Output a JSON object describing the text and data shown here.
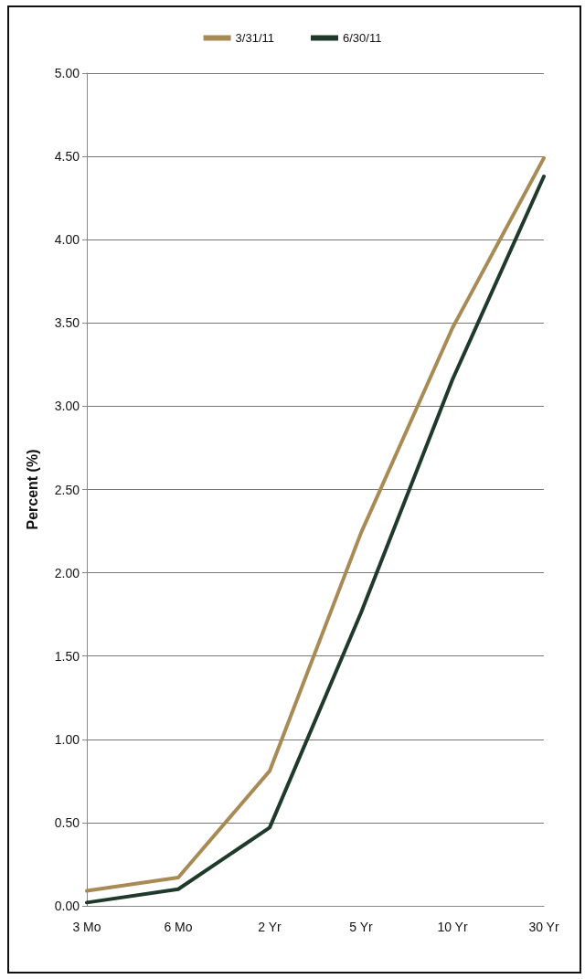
{
  "chart_data": {
    "type": "line",
    "ylabel": "Percent (%)",
    "categories": [
      "3 Mo",
      "6 Mo",
      "2 Yr",
      "5 Yr",
      "10 Yr",
      "30 Yr"
    ],
    "series": [
      {
        "name": "3/31/11",
        "color": "#a88a55",
        "values": [
          0.09,
          0.17,
          0.81,
          2.24,
          3.47,
          4.49
        ]
      },
      {
        "name": "6/30/11",
        "color": "#1f3a2a",
        "values": [
          0.02,
          0.1,
          0.47,
          1.76,
          3.16,
          4.38
        ]
      }
    ],
    "ylim": [
      0,
      5
    ],
    "yticks": [
      {
        "value": 0,
        "label": "0.00"
      },
      {
        "value": 0.5,
        "label": "0.50"
      },
      {
        "value": 1,
        "label": "1.00"
      },
      {
        "value": 1.5,
        "label": "1.50"
      },
      {
        "value": 2,
        "label": "2.00"
      },
      {
        "value": 2.5,
        "label": "2.50"
      },
      {
        "value": 3,
        "label": "3.00"
      },
      {
        "value": 3.5,
        "label": "3.50"
      },
      {
        "value": 4,
        "label": "4.00"
      },
      {
        "value": 4.5,
        "label": "4.50"
      },
      {
        "value": 5,
        "label": "5.00"
      }
    ],
    "grid": "y",
    "legend": "top",
    "marker": "none",
    "line_style": "solid"
  }
}
